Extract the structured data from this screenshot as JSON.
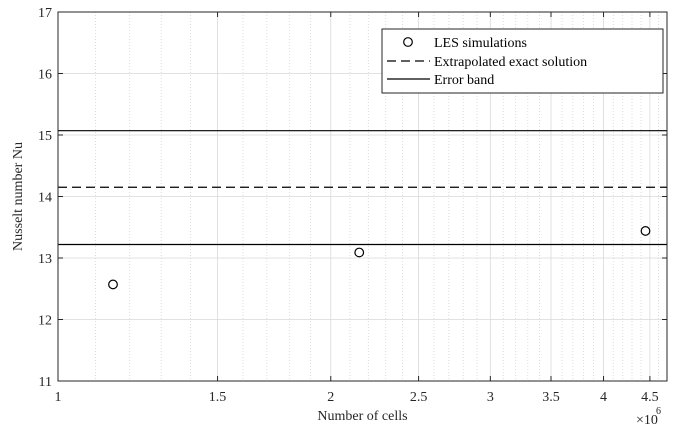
{
  "chart_data": {
    "type": "scatter",
    "xscale": "log",
    "xlim": [
      1000000,
      4700000
    ],
    "ylim": [
      11,
      17
    ],
    "xticks": [
      1000000,
      1500000,
      2000000,
      2500000,
      3000000,
      3500000,
      4000000,
      4500000
    ],
    "xtick_labels": [
      "1",
      "1.5",
      "2",
      "2.5",
      "3",
      "3.5",
      "4",
      "4.5"
    ],
    "yticks": [
      11,
      12,
      13,
      14,
      15,
      16,
      17
    ],
    "ytick_labels": [
      "11",
      "12",
      "13",
      "14",
      "15",
      "16",
      "17"
    ],
    "x_exponent_base": "×10",
    "x_exponent_power": "6",
    "xlabel": "Number of cells",
    "ylabel": "Nusselt number Nu",
    "grid": true,
    "legend_position": "top-right",
    "series": [
      {
        "name": "LES simulations",
        "style": "open-circle",
        "points": [
          {
            "x": 1150000,
            "y": 12.57
          },
          {
            "x": 2150000,
            "y": 13.09
          },
          {
            "x": 4450000,
            "y": 13.44
          }
        ]
      },
      {
        "name": "Extrapolated exact solution",
        "style": "dashed-hline",
        "y": 14.15
      },
      {
        "name": "Error band",
        "style": "solid-hline",
        "y": [
          13.22,
          15.07
        ]
      }
    ]
  }
}
